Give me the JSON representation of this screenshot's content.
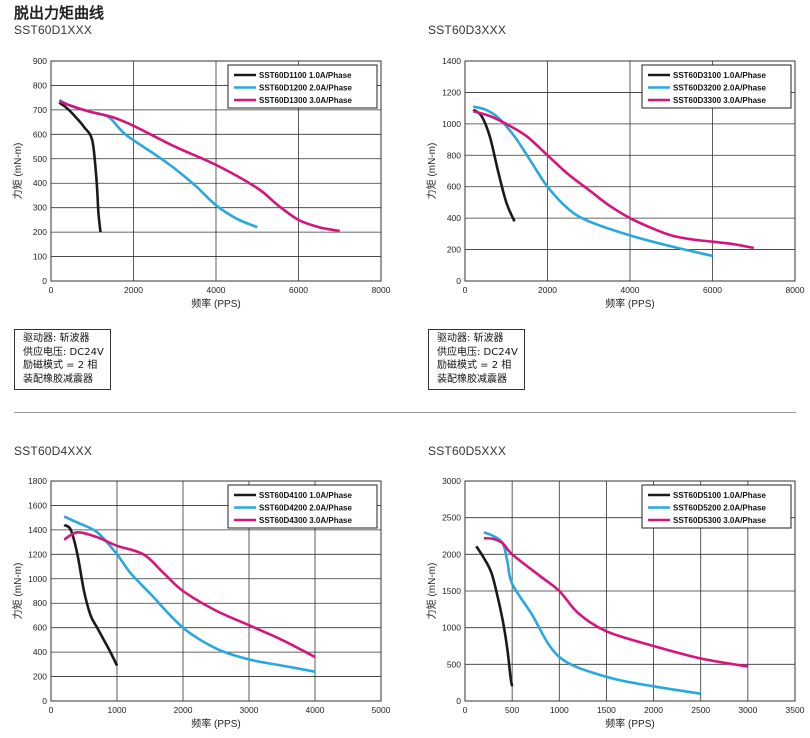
{
  "page": {
    "title": "脱出力矩曲线"
  },
  "conditions": [
    "驱动器: 斩波器",
    "供应电压: DC24V",
    "励磁模式 = 2 相",
    "装配橡胶减震器"
  ],
  "colors": {
    "black": "#1a1a1a",
    "blue": "#29a8de",
    "magenta": "#d6157c",
    "grid": "#333333"
  },
  "chart_data": [
    {
      "type": "line",
      "model": "SST60D1XXX",
      "xlabel": "频率 (PPS)",
      "ylabel": "力矩 (mN-m)",
      "xlim": [
        0,
        8000
      ],
      "ylim": [
        0,
        900
      ],
      "xticks": [
        0,
        2000,
        4000,
        6000,
        8000
      ],
      "yticks": [
        0,
        100,
        200,
        300,
        400,
        500,
        600,
        700,
        800,
        900
      ],
      "grid": true,
      "legend": "top-right",
      "series": [
        {
          "name": "SST60D1100  1.0A/Phase",
          "color": "black",
          "points": [
            [
              200,
              730
            ],
            [
              400,
              705
            ],
            [
              600,
              670
            ],
            [
              800,
              630
            ],
            [
              1000,
              575
            ],
            [
              1100,
              420
            ],
            [
              1150,
              280
            ],
            [
              1200,
              200
            ]
          ]
        },
        {
          "name": "SST60D1200  2.0A/Phase",
          "color": "blue",
          "points": [
            [
              200,
              740
            ],
            [
              500,
              715
            ],
            [
              1000,
              690
            ],
            [
              1400,
              670
            ],
            [
              1800,
              600
            ],
            [
              2500,
              520
            ],
            [
              3000,
              460
            ],
            [
              3500,
              390
            ],
            [
              4000,
              310
            ],
            [
              4500,
              255
            ],
            [
              5000,
              220
            ]
          ]
        },
        {
          "name": "SST60D1300  3.0A/Phase",
          "color": "magenta",
          "points": [
            [
              200,
              735
            ],
            [
              600,
              710
            ],
            [
              1000,
              690
            ],
            [
              1500,
              670
            ],
            [
              2000,
              635
            ],
            [
              3000,
              550
            ],
            [
              4000,
              475
            ],
            [
              5000,
              380
            ],
            [
              5500,
              310
            ],
            [
              6000,
              250
            ],
            [
              6500,
              220
            ],
            [
              7000,
              205
            ]
          ]
        }
      ]
    },
    {
      "type": "line",
      "model": "SST60D3XXX",
      "xlabel": "频率 (PPS)",
      "ylabel": "力矩 (mN-m)",
      "xlim": [
        0,
        8000
      ],
      "ylim": [
        0,
        1400
      ],
      "xticks": [
        0,
        2000,
        4000,
        6000,
        8000
      ],
      "yticks": [
        0,
        200,
        400,
        600,
        800,
        1000,
        1200,
        1400
      ],
      "grid": true,
      "legend": "top-right",
      "series": [
        {
          "name": "SST60D3100  1.0A/Phase",
          "color": "black",
          "points": [
            [
              200,
              1090
            ],
            [
              400,
              1050
            ],
            [
              600,
              920
            ],
            [
              800,
              700
            ],
            [
              1000,
              500
            ],
            [
              1200,
              380
            ]
          ]
        },
        {
          "name": "SST60D3200  2.0A/Phase",
          "color": "blue",
          "points": [
            [
              200,
              1110
            ],
            [
              500,
              1090
            ],
            [
              800,
              1040
            ],
            [
              1200,
              920
            ],
            [
              1600,
              760
            ],
            [
              2000,
              600
            ],
            [
              2500,
              460
            ],
            [
              3000,
              380
            ],
            [
              4000,
              290
            ],
            [
              5000,
              220
            ],
            [
              6000,
              160
            ]
          ]
        },
        {
          "name": "SST60D3300  3.0A/Phase",
          "color": "magenta",
          "points": [
            [
              200,
              1080
            ],
            [
              600,
              1050
            ],
            [
              1000,
              1000
            ],
            [
              1500,
              920
            ],
            [
              2000,
              800
            ],
            [
              2500,
              680
            ],
            [
              3000,
              580
            ],
            [
              3500,
              480
            ],
            [
              4000,
              400
            ],
            [
              4500,
              340
            ],
            [
              5000,
              290
            ],
            [
              5500,
              265
            ],
            [
              6000,
              250
            ],
            [
              6500,
              235
            ],
            [
              7000,
              210
            ]
          ]
        }
      ]
    },
    {
      "type": "line",
      "model": "SST60D4XXX",
      "xlabel": "频率 (PPS)",
      "ylabel": "力矩 (mN-m)",
      "xlim": [
        0,
        5000
      ],
      "ylim": [
        0,
        1800
      ],
      "xticks": [
        0,
        1000,
        2000,
        3000,
        4000,
        5000
      ],
      "yticks": [
        0,
        200,
        400,
        600,
        800,
        1000,
        1200,
        1400,
        1600,
        1800
      ],
      "grid": true,
      "legend": "top-right",
      "series": [
        {
          "name": "SST60D4100  1.0A/Phase",
          "color": "black",
          "points": [
            [
              200,
              1440
            ],
            [
              300,
              1400
            ],
            [
              400,
              1200
            ],
            [
              500,
              900
            ],
            [
              600,
              700
            ],
            [
              700,
              600
            ],
            [
              800,
              500
            ],
            [
              900,
              400
            ],
            [
              1000,
              290
            ]
          ]
        },
        {
          "name": "SST60D4200  2.0A/Phase",
          "color": "blue",
          "points": [
            [
              200,
              1510
            ],
            [
              400,
              1460
            ],
            [
              700,
              1380
            ],
            [
              1000,
              1200
            ],
            [
              1200,
              1050
            ],
            [
              1500,
              880
            ],
            [
              2000,
              600
            ],
            [
              2500,
              430
            ],
            [
              3000,
              340
            ],
            [
              3500,
              290
            ],
            [
              4000,
              240
            ]
          ]
        },
        {
          "name": "SST60D4300  3.0A/Phase",
          "color": "magenta",
          "points": [
            [
              200,
              1320
            ],
            [
              400,
              1380
            ],
            [
              700,
              1340
            ],
            [
              1000,
              1270
            ],
            [
              1400,
              1200
            ],
            [
              1700,
              1050
            ],
            [
              2000,
              900
            ],
            [
              2500,
              740
            ],
            [
              3000,
              620
            ],
            [
              3500,
              500
            ],
            [
              4000,
              360
            ]
          ]
        }
      ]
    },
    {
      "type": "line",
      "model": "SST60D5XXX",
      "xlabel": "频率 (PPS)",
      "ylabel": "力矩 (mN-m)",
      "xlim": [
        0,
        3500
      ],
      "ylim": [
        0,
        3000
      ],
      "xticks": [
        0,
        500,
        1000,
        1500,
        2000,
        2500,
        3000,
        3500
      ],
      "yticks": [
        0,
        500,
        1000,
        1500,
        2000,
        2500,
        3000
      ],
      "grid": true,
      "legend": "top-right",
      "series": [
        {
          "name": "SST60D5100  1.0A/Phase",
          "color": "black",
          "points": [
            [
              120,
              2110
            ],
            [
              200,
              1950
            ],
            [
              280,
              1750
            ],
            [
              350,
              1400
            ],
            [
              400,
              1100
            ],
            [
              450,
              700
            ],
            [
              480,
              350
            ],
            [
              500,
              200
            ]
          ]
        },
        {
          "name": "SST60D5200  2.0A/Phase",
          "color": "blue",
          "points": [
            [
              200,
              2300
            ],
            [
              300,
              2250
            ],
            [
              400,
              2150
            ],
            [
              450,
              1900
            ],
            [
              500,
              1600
            ],
            [
              700,
              1200
            ],
            [
              1000,
              600
            ],
            [
              1500,
              330
            ],
            [
              2000,
              200
            ],
            [
              2500,
              100
            ]
          ]
        },
        {
          "name": "SST60D5300  3.0A/Phase",
          "color": "magenta",
          "points": [
            [
              200,
              2220
            ],
            [
              300,
              2210
            ],
            [
              400,
              2150
            ],
            [
              500,
              2000
            ],
            [
              800,
              1700
            ],
            [
              1000,
              1500
            ],
            [
              1200,
              1200
            ],
            [
              1500,
              950
            ],
            [
              2000,
              750
            ],
            [
              2500,
              580
            ],
            [
              3000,
              470
            ]
          ]
        }
      ]
    }
  ]
}
